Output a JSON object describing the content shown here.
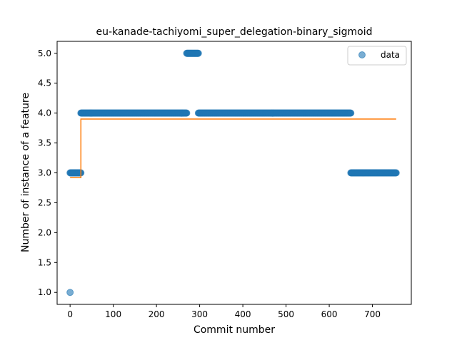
{
  "chart_data": {
    "type": "scatter",
    "title": "eu-kanade-tachiyomi_super_delegation-binary_sigmoid",
    "xlabel": "Commit number",
    "ylabel": "Number of instance of a feature",
    "xlim": [
      -30,
      790
    ],
    "ylim": [
      0.8,
      5.2
    ],
    "xticks": [
      0,
      100,
      200,
      300,
      400,
      500,
      600,
      700
    ],
    "yticks": [
      1.0,
      1.5,
      2.0,
      2.5,
      3.0,
      3.5,
      4.0,
      4.5,
      5.0
    ],
    "xtick_labels": [
      "0",
      "100",
      "200",
      "300",
      "400",
      "500",
      "600",
      "700"
    ],
    "ytick_labels": [
      "1.0",
      "1.5",
      "2.0",
      "2.5",
      "3.0",
      "3.5",
      "4.0",
      "4.5",
      "5.0"
    ],
    "legend": {
      "position": "upper-right",
      "entries": [
        "data"
      ]
    },
    "grid": false,
    "series": [
      {
        "name": "data",
        "kind": "scatter",
        "color": "#1f77b4",
        "segments": [
          {
            "x_start": 0,
            "x_end": 0,
            "y": 1.0
          },
          {
            "x_start": 0,
            "x_end": 25,
            "y": 3.0
          },
          {
            "x_start": 25,
            "x_end": 270,
            "y": 4.0
          },
          {
            "x_start": 270,
            "x_end": 297,
            "y": 5.0
          },
          {
            "x_start": 297,
            "x_end": 650,
            "y": 4.0
          },
          {
            "x_start": 650,
            "x_end": 755,
            "y": 3.0
          }
        ]
      },
      {
        "kind": "line",
        "color": "#ff7f0e",
        "x": [
          0,
          25,
          25,
          755
        ],
        "y": [
          2.92,
          2.92,
          3.9,
          3.9
        ]
      }
    ]
  }
}
